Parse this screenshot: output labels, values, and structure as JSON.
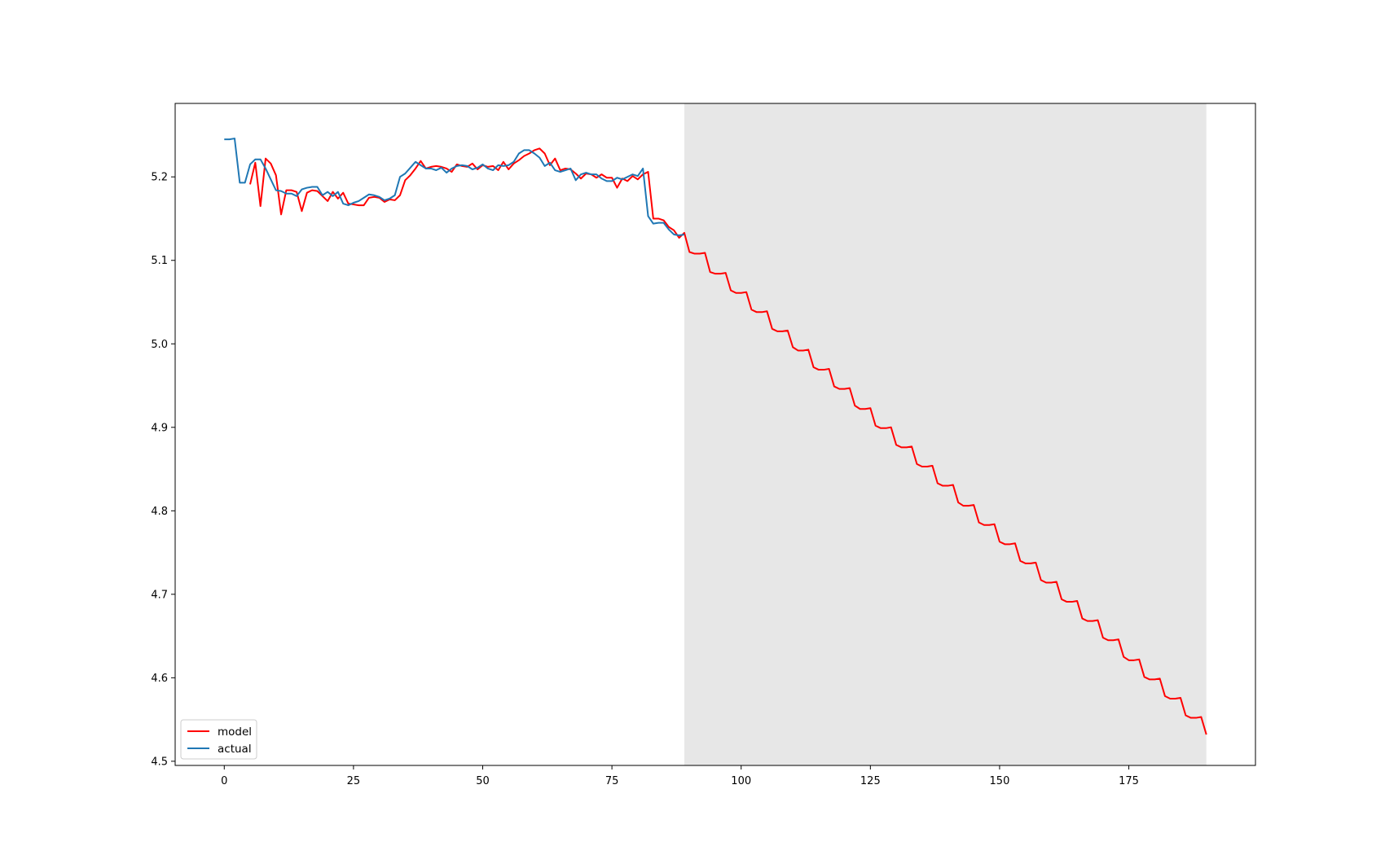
{
  "chart_data": {
    "type": "line",
    "title": "",
    "xlabel": "",
    "ylabel": "",
    "xlim": [
      -9.5,
      199.5
    ],
    "ylim": [
      4.495,
      5.288
    ],
    "x_ticks": [
      0,
      25,
      50,
      75,
      100,
      125,
      150,
      175
    ],
    "x_tick_labels": [
      "0",
      "25",
      "50",
      "75",
      "100",
      "125",
      "150",
      "175"
    ],
    "y_ticks": [
      4.5,
      4.6,
      4.7,
      4.8,
      4.9,
      5.0,
      5.1,
      5.2
    ],
    "y_tick_labels": [
      "4.5",
      "4.6",
      "4.7",
      "4.8",
      "4.9",
      "5.0",
      "5.1",
      "5.2"
    ],
    "grid": false,
    "legend_position": "lower-left",
    "shaded_region": {
      "x_start": 89,
      "x_end": 190,
      "color": "#e7e7e7"
    },
    "series": [
      {
        "name": "model",
        "color": "#ff0000",
        "x": [
          5,
          6,
          7,
          8,
          9,
          10,
          11,
          12,
          13,
          14,
          15,
          16,
          17,
          18,
          19,
          20,
          21,
          22,
          23,
          24,
          25,
          26,
          27,
          28,
          29,
          30,
          31,
          32,
          33,
          34,
          35,
          36,
          37,
          38,
          39,
          40,
          41,
          42,
          43,
          44,
          45,
          46,
          47,
          48,
          49,
          50,
          51,
          52,
          53,
          54,
          55,
          56,
          57,
          58,
          59,
          60,
          61,
          62,
          63,
          64,
          65,
          66,
          67,
          68,
          69,
          70,
          71,
          72,
          73,
          74,
          75,
          76,
          77,
          78,
          79,
          80,
          81,
          82,
          83,
          84,
          85,
          86,
          87,
          88,
          89,
          90,
          91,
          92,
          93,
          94,
          95,
          96,
          97,
          98,
          99,
          100,
          101,
          102,
          103,
          104,
          105,
          106,
          107,
          108,
          109,
          110,
          111,
          112,
          113,
          114,
          115,
          116,
          117,
          118,
          119,
          120,
          121,
          122,
          123,
          124,
          125,
          126,
          127,
          128,
          129,
          130,
          131,
          132,
          133,
          134,
          135,
          136,
          137,
          138,
          139,
          140,
          141,
          142,
          143,
          144,
          145,
          146,
          147,
          148,
          149,
          150,
          151,
          152,
          153,
          154,
          155,
          156,
          157,
          158,
          159,
          160,
          161,
          162,
          163,
          164,
          165,
          166,
          167,
          168,
          169,
          170,
          171,
          172,
          173,
          174,
          175,
          176,
          177,
          178,
          179,
          180,
          181,
          182,
          183,
          184,
          185,
          186,
          187,
          188,
          189,
          190
        ],
        "y": [
          5.191,
          5.217,
          5.165,
          5.222,
          5.216,
          5.202,
          5.155,
          5.184,
          5.184,
          5.182,
          5.159,
          5.181,
          5.184,
          5.183,
          5.177,
          5.171,
          5.182,
          5.174,
          5.181,
          5.168,
          5.167,
          5.166,
          5.166,
          5.175,
          5.176,
          5.175,
          5.17,
          5.173,
          5.172,
          5.178,
          5.196,
          5.202,
          5.21,
          5.219,
          5.21,
          5.212,
          5.213,
          5.212,
          5.21,
          5.206,
          5.215,
          5.213,
          5.212,
          5.216,
          5.209,
          5.214,
          5.212,
          5.213,
          5.208,
          5.218,
          5.209,
          5.216,
          5.22,
          5.225,
          5.228,
          5.232,
          5.234,
          5.228,
          5.214,
          5.222,
          5.208,
          5.21,
          5.209,
          5.204,
          5.198,
          5.204,
          5.203,
          5.199,
          5.203,
          5.199,
          5.199,
          5.187,
          5.198,
          5.195,
          5.201,
          5.197,
          5.203,
          5.206,
          5.15,
          5.15,
          5.148,
          5.14,
          5.136,
          5.127,
          5.133,
          5.11,
          5.108,
          5.108,
          5.109,
          5.086,
          5.084,
          5.084,
          5.085,
          5.064,
          5.061,
          5.061,
          5.062,
          5.041,
          5.038,
          5.038,
          5.039,
          5.018,
          5.015,
          5.015,
          5.016,
          4.996,
          4.992,
          4.992,
          4.993,
          4.972,
          4.969,
          4.969,
          4.97,
          4.949,
          4.946,
          4.946,
          4.947,
          4.926,
          4.922,
          4.922,
          4.923,
          4.902,
          4.899,
          4.899,
          4.9,
          4.879,
          4.876,
          4.876,
          4.877,
          4.856,
          4.853,
          4.853,
          4.854,
          4.833,
          4.83,
          4.83,
          4.831,
          4.81,
          4.806,
          4.806,
          4.807,
          4.786,
          4.783,
          4.783,
          4.784,
          4.763,
          4.76,
          4.76,
          4.761,
          4.74,
          4.737,
          4.737,
          4.738,
          4.717,
          4.714,
          4.714,
          4.715,
          4.694,
          4.691,
          4.691,
          4.692,
          4.671,
          4.668,
          4.668,
          4.669,
          4.648,
          4.645,
          4.645,
          4.646,
          4.625,
          4.621,
          4.621,
          4.622,
          4.601,
          4.598,
          4.598,
          4.599,
          4.578,
          4.575,
          4.575,
          4.576,
          4.555,
          4.552,
          4.552,
          4.553,
          4.532
        ]
      },
      {
        "name": "actual",
        "color": "#1f77b4",
        "x": [
          0,
          1,
          2,
          3,
          4,
          5,
          6,
          7,
          8,
          9,
          10,
          11,
          12,
          13,
          14,
          15,
          16,
          17,
          18,
          19,
          20,
          21,
          22,
          23,
          24,
          25,
          26,
          27,
          28,
          29,
          30,
          31,
          32,
          33,
          34,
          35,
          36,
          37,
          38,
          39,
          40,
          41,
          42,
          43,
          44,
          45,
          46,
          47,
          48,
          49,
          50,
          51,
          52,
          53,
          54,
          55,
          56,
          57,
          58,
          59,
          60,
          61,
          62,
          63,
          64,
          65,
          66,
          67,
          68,
          69,
          70,
          71,
          72,
          73,
          74,
          75,
          76,
          77,
          78,
          79,
          80,
          81,
          82,
          83,
          84,
          85,
          86,
          87,
          88,
          89
        ],
        "y": [
          5.245,
          5.245,
          5.246,
          5.193,
          5.193,
          5.215,
          5.221,
          5.221,
          5.21,
          5.197,
          5.184,
          5.183,
          5.18,
          5.18,
          5.177,
          5.185,
          5.187,
          5.188,
          5.188,
          5.178,
          5.182,
          5.177,
          5.182,
          5.168,
          5.166,
          5.169,
          5.171,
          5.175,
          5.179,
          5.178,
          5.176,
          5.172,
          5.174,
          5.178,
          5.2,
          5.204,
          5.211,
          5.218,
          5.214,
          5.21,
          5.21,
          5.208,
          5.211,
          5.205,
          5.21,
          5.213,
          5.214,
          5.213,
          5.209,
          5.211,
          5.215,
          5.21,
          5.208,
          5.214,
          5.213,
          5.214,
          5.218,
          5.228,
          5.232,
          5.232,
          5.228,
          5.223,
          5.213,
          5.217,
          5.208,
          5.206,
          5.208,
          5.21,
          5.196,
          5.203,
          5.205,
          5.203,
          5.203,
          5.198,
          5.195,
          5.195,
          5.199,
          5.197,
          5.2,
          5.203,
          5.201,
          5.21,
          5.153,
          5.144,
          5.145,
          5.145,
          5.137,
          5.131,
          5.13,
          5.131
        ]
      }
    ]
  }
}
